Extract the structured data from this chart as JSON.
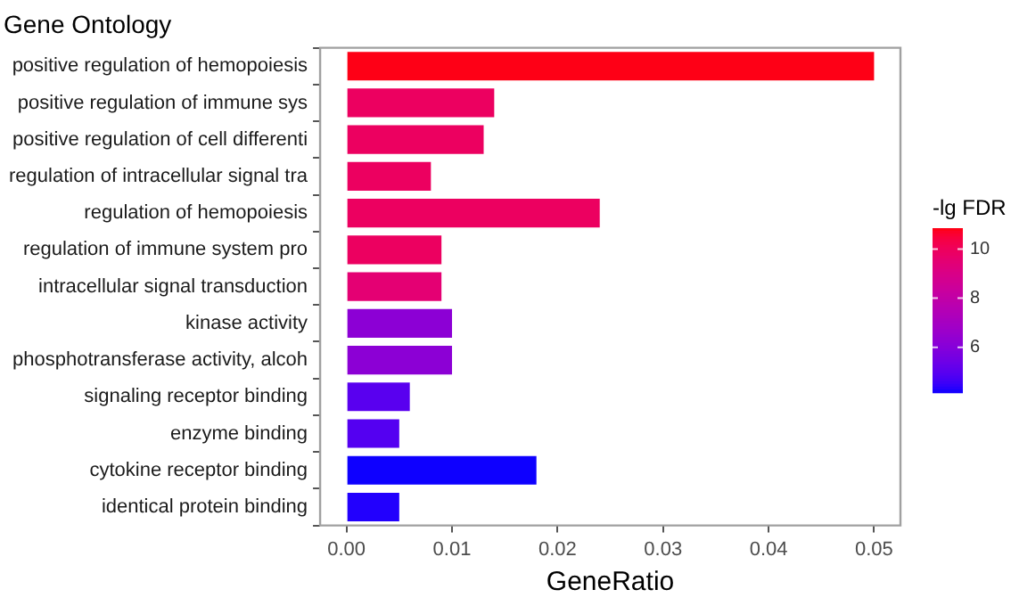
{
  "chart_data": {
    "type": "bar",
    "orientation": "horizontal",
    "title": "Gene Ontology",
    "xlabel": "GeneRatio",
    "clabel": "-lg FDR",
    "categories": [
      "positive regulation of hemopoiesis",
      "positive regulation of immune sys",
      "positive regulation of cell differenti",
      "regulation of intracellular signal tra",
      "regulation of hemopoiesis",
      "regulation of immune system pro",
      "intracellular signal transduction",
      "kinase activity",
      "phosphotransferase activity, alcoh",
      "signaling receptor binding",
      "enzyme binding",
      "cytokine receptor binding",
      "identical protein binding"
    ],
    "values": [
      0.05,
      0.014,
      0.013,
      0.008,
      0.024,
      0.009,
      0.009,
      0.01,
      0.01,
      0.006,
      0.005,
      0.018,
      0.005
    ],
    "cvalues": [
      10.8,
      9.9,
      9.9,
      9.9,
      9.9,
      9.9,
      9.5,
      6.2,
      6.2,
      5.0,
      4.9,
      4.2,
      4.3
    ],
    "xlim": [
      -0.0025,
      0.0525
    ],
    "xticks": [
      {
        "value": 0,
        "label": "0.00"
      },
      {
        "value": 0.01,
        "label": "0.01"
      },
      {
        "value": 0.02,
        "label": "0.02"
      },
      {
        "value": 0.03,
        "label": "0.03"
      },
      {
        "value": 0.04,
        "label": "0.04"
      },
      {
        "value": 0.05,
        "label": "0.05"
      }
    ],
    "clim": [
      4.18,
      10.85
    ],
    "cticks": [
      6,
      8,
      10
    ],
    "grid": false,
    "legend": false
  }
}
